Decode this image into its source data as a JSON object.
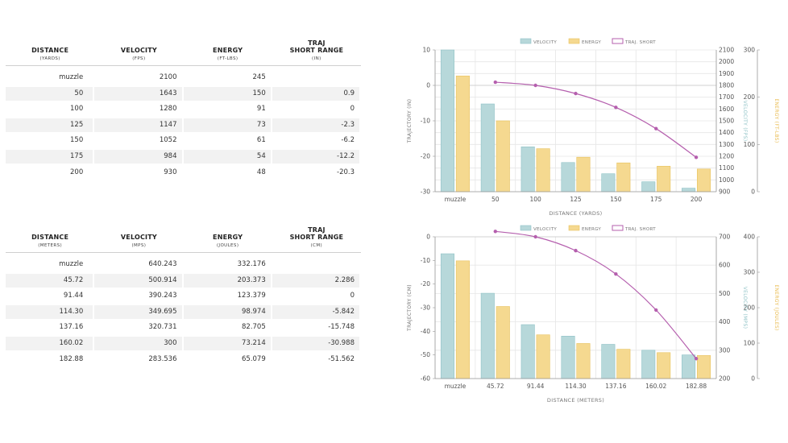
{
  "tables": [
    {
      "headers": [
        {
          "label": "DISTANCE",
          "unit": "(YARDS)"
        },
        {
          "label": "VELOCITY",
          "unit": "(FPS)"
        },
        {
          "label": "ENERGY",
          "unit": "(FT-LBS)"
        },
        {
          "label": "TRAJ\nSHORT RANGE",
          "unit": "(IN)"
        }
      ],
      "rows": [
        [
          "muzzle",
          "2100",
          "245",
          ""
        ],
        [
          "50",
          "1643",
          "150",
          "0.9"
        ],
        [
          "100",
          "1280",
          "91",
          "0"
        ],
        [
          "125",
          "1147",
          "73",
          "-2.3"
        ],
        [
          "150",
          "1052",
          "61",
          "-6.2"
        ],
        [
          "175",
          "984",
          "54",
          "-12.2"
        ],
        [
          "200",
          "930",
          "48",
          "-20.3"
        ]
      ]
    },
    {
      "headers": [
        {
          "label": "DISTANCE",
          "unit": "(METERS)"
        },
        {
          "label": "VELOCITY",
          "unit": "(MPS)"
        },
        {
          "label": "ENERGY",
          "unit": "(JOULES)"
        },
        {
          "label": "TRAJ\nSHORT RANGE",
          "unit": "(CM)"
        }
      ],
      "rows": [
        [
          "muzzle",
          "640.243",
          "332.176",
          ""
        ],
        [
          "45.72",
          "500.914",
          "203.373",
          "2.286"
        ],
        [
          "91.44",
          "390.243",
          "123.379",
          "0"
        ],
        [
          "114.30",
          "349.695",
          "98.974",
          "-5.842"
        ],
        [
          "137.16",
          "320.731",
          "82.705",
          "-15.748"
        ],
        [
          "160.02",
          "300",
          "73.214",
          "-30.988"
        ],
        [
          "182.88",
          "283.536",
          "65.079",
          "-51.562"
        ]
      ]
    }
  ],
  "colors": {
    "velocity": "#b7d8da",
    "velocity_stroke": "#8fc2c6",
    "energy": "#f5d990",
    "energy_stroke": "#e8c25e",
    "traj": "#b55fae",
    "grid": "#e6e6e6"
  },
  "chart_data": [
    {
      "type": "bar",
      "categories": [
        "muzzle",
        "50",
        "100",
        "125",
        "150",
        "175",
        "200"
      ],
      "xlabel": "DISTANCE (YARDS)",
      "legend": [
        "VELOCITY",
        "ENERGY",
        "TRAJ. SHORT"
      ],
      "series": [
        {
          "name": "VELOCITY",
          "axis": "right1",
          "values": [
            2100,
            1643,
            1280,
            1147,
            1052,
            984,
            930
          ]
        },
        {
          "name": "ENERGY",
          "axis": "right2",
          "values": [
            245,
            150,
            91,
            73,
            61,
            54,
            48
          ]
        },
        {
          "name": "TRAJ. SHORT",
          "type": "line",
          "axis": "left",
          "values": [
            null,
            0.9,
            0,
            -2.3,
            -6.2,
            -12.2,
            -20.3
          ]
        }
      ],
      "y_left": {
        "label": "TRAJECTORY (IN)",
        "min": -30,
        "max": 10,
        "ticks": [
          10,
          0,
          -10,
          -20,
          -30
        ]
      },
      "y_right1": {
        "label": "VELOCITY (FPS)",
        "min": 900,
        "max": 2100,
        "ticks": [
          2100,
          2000,
          1900,
          1800,
          1700,
          1600,
          1500,
          1400,
          1300,
          1200,
          1100,
          1000,
          900
        ]
      },
      "y_right2": {
        "label": "ENERGY (FT-LBS)",
        "min": 0,
        "max": 300,
        "ticks": [
          300,
          200,
          100,
          0
        ]
      }
    },
    {
      "type": "bar",
      "categories": [
        "muzzle",
        "45.72",
        "91.44",
        "114.30",
        "137.16",
        "160.02",
        "182.88"
      ],
      "xlabel": "DISTANCE (METERS)",
      "legend": [
        "VELOCITY",
        "ENERGY",
        "TRAJ. SHORT"
      ],
      "series": [
        {
          "name": "VELOCITY",
          "axis": "right1",
          "values": [
            640.243,
            500.914,
            390.243,
            349.695,
            320.731,
            300,
            283.536
          ]
        },
        {
          "name": "ENERGY",
          "axis": "right2",
          "values": [
            332.176,
            203.373,
            123.379,
            98.974,
            82.705,
            73.214,
            65.079
          ]
        },
        {
          "name": "TRAJ. SHORT",
          "type": "line",
          "axis": "left",
          "values": [
            null,
            2.286,
            0,
            -5.842,
            -15.748,
            -30.988,
            -51.562
          ]
        }
      ],
      "y_left": {
        "label": "TRAJECTORY (CM)",
        "min": -60,
        "max": 0,
        "ticks": [
          0,
          -10,
          -20,
          -30,
          -40,
          -50,
          -60
        ]
      },
      "y_right1": {
        "label": "VELOCITY (MPS)",
        "min": 200,
        "max": 700,
        "ticks": [
          700,
          600,
          500,
          400,
          300,
          200
        ]
      },
      "y_right2": {
        "label": "ENERGY (JOULES)",
        "min": 0,
        "max": 400,
        "ticks": [
          400,
          300,
          200,
          100,
          0
        ]
      }
    }
  ]
}
